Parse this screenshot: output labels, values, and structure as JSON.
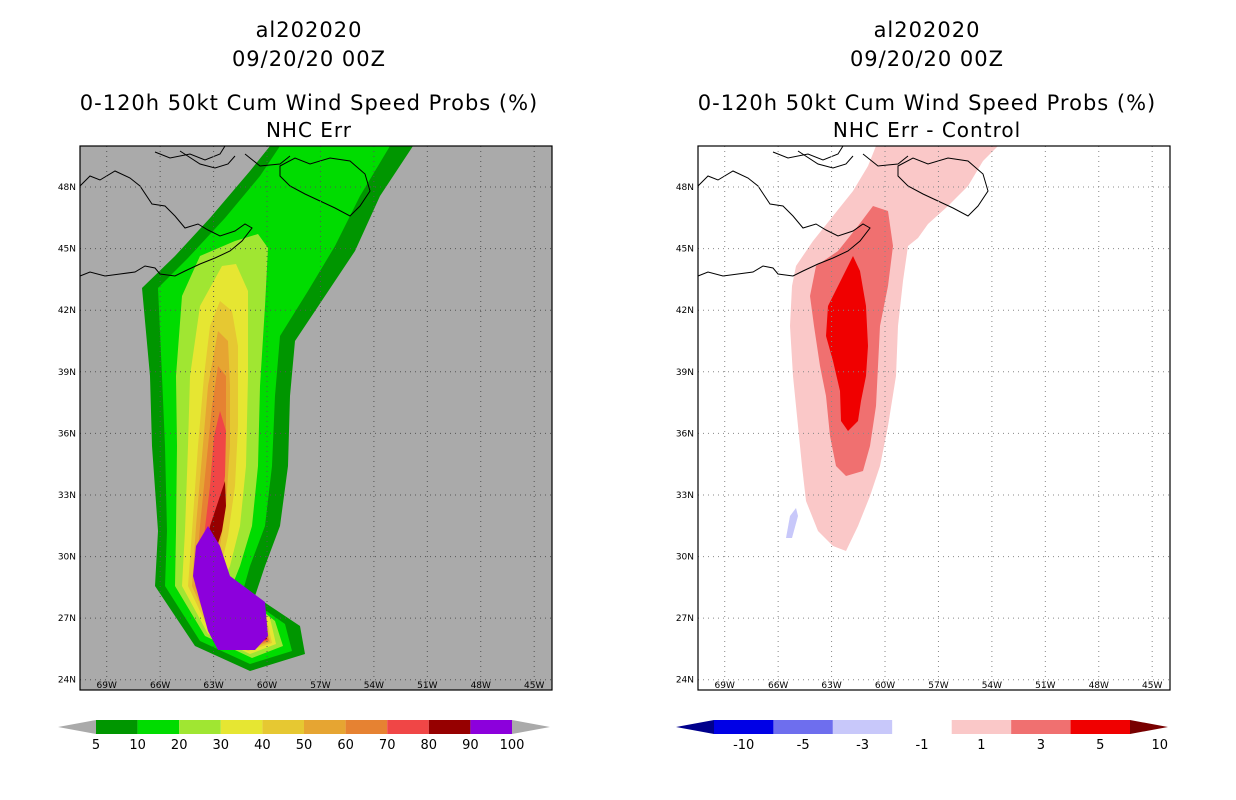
{
  "left_panel": {
    "storm_id": "al202020",
    "datetime": "09/20/20 00Z",
    "title": "0-120h 50kt Cum Wind Speed Probs (%)",
    "subtitle": "NHC Err"
  },
  "right_panel": {
    "storm_id": "al202020",
    "datetime": "09/20/20 00Z",
    "title": "0-120h 50kt Cum Wind Speed Probs (%)",
    "subtitle": "NHC Err - Control"
  },
  "chart_data": [
    {
      "type": "heatmap",
      "title": "0-120h 50kt Cum Wind Speed Probs (%)",
      "subtitle": "NHC Err",
      "lon_range": [
        -70.5,
        -44
      ],
      "lat_range": [
        23.5,
        50
      ],
      "lon_ticks": [
        "69W",
        "66W",
        "63W",
        "60W",
        "57W",
        "54W",
        "51W",
        "48W",
        "45W"
      ],
      "lat_ticks": [
        "48N",
        "45N",
        "42N",
        "39N",
        "36N",
        "33N",
        "30N",
        "27N",
        "24N"
      ],
      "colorbar": {
        "labels": [
          "5",
          "10",
          "20",
          "30",
          "40",
          "50",
          "60",
          "70",
          "80",
          "90",
          "100"
        ],
        "colors": [
          "#009600",
          "#00dc00",
          "#a0e632",
          "#e6e632",
          "#e6c832",
          "#e6a532",
          "#e68232",
          "#f04646",
          "#960000",
          "#8c00dc"
        ]
      },
      "levels": [
        5,
        10,
        20,
        30,
        40,
        50,
        60,
        70,
        80,
        90
      ],
      "region_colors": [
        "#009600",
        "#00dc00",
        "#a0e632",
        "#e6e632",
        "#e6c832",
        "#e6a532",
        "#e68232",
        "#f04646",
        "#960000",
        "#8c00dc"
      ],
      "background": "#aaaaaa"
    },
    {
      "type": "heatmap",
      "title": "0-120h 50kt Cum Wind Speed Probs (%)",
      "subtitle": "NHC Err - Control",
      "lon_range": [
        -70.5,
        -44
      ],
      "lat_range": [
        23.5,
        50
      ],
      "lon_ticks": [
        "69W",
        "66W",
        "63W",
        "60W",
        "57W",
        "54W",
        "51W",
        "48W",
        "45W"
      ],
      "lat_ticks": [
        "48N",
        "45N",
        "42N",
        "39N",
        "36N",
        "33N",
        "30N",
        "27N",
        "24N"
      ],
      "colorbar": {
        "labels": [
          "-10",
          "-5",
          "-3",
          "-1",
          "1",
          "3",
          "5",
          "10"
        ],
        "colors": [
          "#00008c",
          "#0000e6",
          "#6e6eee",
          "#c8c8fa",
          "#ffffff",
          "#fac8c8",
          "#f07070",
          "#f00000",
          "#780000"
        ]
      },
      "levels": [
        -3,
        1,
        3,
        5
      ],
      "region_colors": [
        "#c8c8fa",
        "#fac8c8",
        "#f07070",
        "#f00000"
      ],
      "background": "#ffffff"
    }
  ]
}
